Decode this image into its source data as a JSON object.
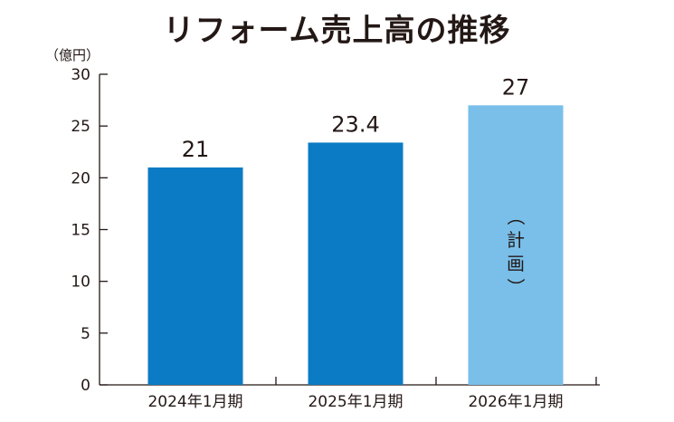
{
  "title": "リフォーム売上高の推移",
  "unit_label": "（億円）",
  "chart_data": {
    "type": "bar",
    "title": "リフォーム売上高の推移",
    "ylabel": "（億円）",
    "xlabel": "",
    "categories": [
      "2024年1月期",
      "2025年1月期",
      "2026年1月期"
    ],
    "values": [
      21,
      23.4,
      27
    ],
    "value_labels": [
      "21",
      "23.4",
      "27"
    ],
    "ylim": [
      0,
      30
    ],
    "yticks": [
      0,
      5,
      10,
      15,
      20,
      25,
      30
    ],
    "grid": false,
    "bar_colors": [
      "#0a7bc4",
      "#0a7bc4",
      "#79bfea"
    ],
    "annotations": [
      {
        "category": "2026年1月期",
        "text": "（計画）"
      }
    ]
  }
}
